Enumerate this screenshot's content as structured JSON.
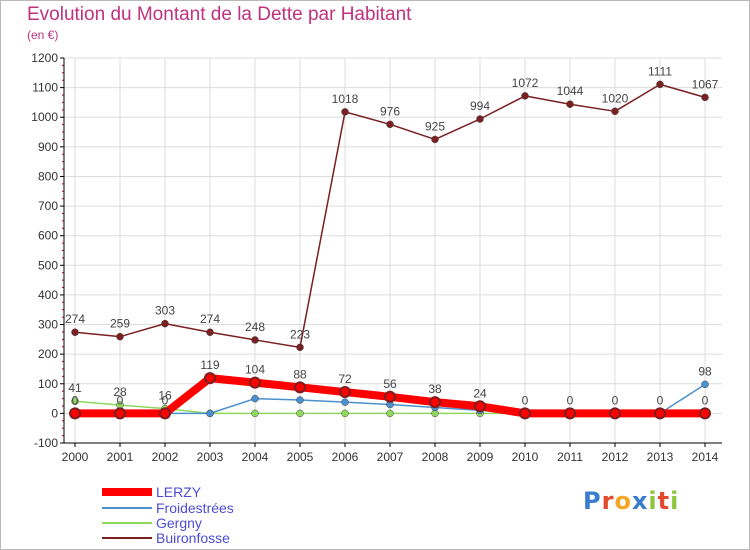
{
  "title": "Evolution du Montant de la Dette par Habitant",
  "unit": "(en €)",
  "logo": "Proxiti",
  "colors": {
    "title": "#c0327e",
    "grid": "#dcdcdc",
    "axis": "#000000",
    "legend_text": "#4d4dd6"
  },
  "chart_data": {
    "type": "line",
    "x": [
      "2000",
      "2001",
      "2002",
      "2003",
      "2004",
      "2005",
      "2006",
      "2007",
      "2008",
      "2009",
      "2010",
      "2011",
      "2012",
      "2013",
      "2014"
    ],
    "ylim": [
      -100,
      1200
    ],
    "yticks": [
      -100,
      0,
      100,
      200,
      300,
      400,
      500,
      600,
      700,
      800,
      900,
      1000,
      1100,
      1200
    ],
    "grid": true,
    "legend_position": "bottom-left",
    "series": [
      {
        "name": "LERZY",
        "color": "#ff0000",
        "values": [
          0,
          0,
          0,
          119,
          104,
          88,
          72,
          56,
          38,
          24,
          0,
          0,
          0,
          0,
          0
        ],
        "labels": [
          "0",
          "0",
          "0",
          "119",
          "104",
          "88",
          "72",
          "56",
          "38",
          "24",
          "0",
          "0",
          "0",
          "0",
          "0"
        ]
      },
      {
        "name": "Froidestrées",
        "color": "#4a90cd",
        "values": [
          0,
          0,
          0,
          0,
          50,
          45,
          38,
          30,
          20,
          10,
          0,
          0,
          0,
          0,
          98
        ],
        "labels": [
          "",
          "",
          "",
          "",
          "",
          "",
          "",
          "",
          "",
          "",
          "",
          "",
          "",
          "",
          "98"
        ]
      },
      {
        "name": "Gergny",
        "color": "#8ed860",
        "values": [
          41,
          28,
          16,
          0,
          0,
          0,
          0,
          0,
          0,
          0,
          0,
          0,
          0,
          0,
          0
        ],
        "labels": [
          "41",
          "28",
          "16",
          "",
          "",
          "",
          "",
          "",
          "",
          "",
          "",
          "",
          "",
          "",
          ""
        ]
      },
      {
        "name": "Buironfosse",
        "color": "#7a1f22",
        "values": [
          274,
          259,
          303,
          274,
          248,
          223,
          1018,
          976,
          925,
          994,
          1072,
          1044,
          1020,
          1111,
          1067
        ],
        "labels": [
          "274",
          "259",
          "303",
          "274",
          "248",
          "223",
          "1018",
          "976",
          "925",
          "994",
          "1072",
          "1044",
          "1020",
          "1111",
          "1067"
        ]
      }
    ]
  }
}
